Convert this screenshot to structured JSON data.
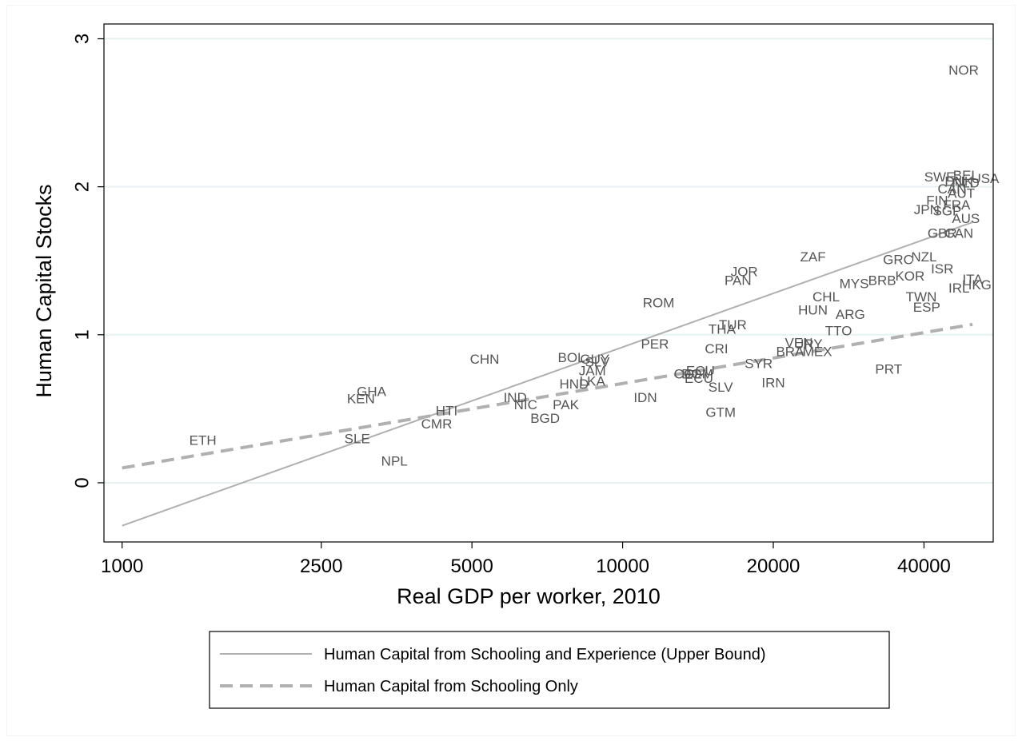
{
  "chart_data": {
    "type": "scatter",
    "title": "",
    "xlabel": "Real GDP per worker, 2010",
    "ylabel": "Human Capital Stocks",
    "x_scale": "log",
    "xlim": [
      920,
      55000
    ],
    "ylim": [
      -0.4,
      3.1
    ],
    "x_ticks": [
      1000,
      2500,
      5000,
      10000,
      20000,
      40000
    ],
    "x_tick_labels": [
      "1000",
      "2500",
      "5000",
      "10000",
      "20000",
      "40000"
    ],
    "y_ticks": [
      0,
      1,
      2,
      3
    ],
    "y_tick_labels": [
      "0",
      "1",
      "2",
      "3"
    ],
    "grid": "horizontal",
    "legend_position": "bottom",
    "colors": {
      "points": "#555555",
      "upper_line": "#b0b0b0",
      "schooling_line": "#b0b0b0",
      "grid": "#e6f1f1",
      "axis": "#000000"
    },
    "series": [
      {
        "name": "Human Capital from Schooling and Experience (Upper Bound)",
        "style": "solid",
        "x": [
          1000,
          50000
        ],
        "y": [
          -0.29,
          1.76
        ]
      },
      {
        "name": "Human Capital from Schooling Only",
        "style": "dashed",
        "x": [
          1000,
          50000
        ],
        "y": [
          0.1,
          1.07
        ]
      }
    ],
    "points": [
      {
        "label": "NOR",
        "x": 48000,
        "y": 2.78
      },
      {
        "label": "SWE",
        "x": 43000,
        "y": 2.06
      },
      {
        "label": "BEL",
        "x": 48500,
        "y": 2.07
      },
      {
        "label": "USA",
        "x": 53000,
        "y": 2.05
      },
      {
        "label": "DNK",
        "x": 47000,
        "y": 2.03
      },
      {
        "label": "NLD",
        "x": 48500,
        "y": 2.02
      },
      {
        "label": "CAN",
        "x": 45500,
        "y": 1.98
      },
      {
        "label": "AUT",
        "x": 47500,
        "y": 1.95
      },
      {
        "label": "FIN",
        "x": 42500,
        "y": 1.9
      },
      {
        "label": "FRA",
        "x": 46500,
        "y": 1.87
      },
      {
        "label": "JPN",
        "x": 40500,
        "y": 1.84
      },
      {
        "label": "SGP",
        "x": 44500,
        "y": 1.83
      },
      {
        "label": "AUS",
        "x": 48500,
        "y": 1.78
      },
      {
        "label": "GBR",
        "x": 43500,
        "y": 1.68
      },
      {
        "label": "CAN",
        "x": 47000,
        "y": 1.68
      },
      {
        "label": "ZAF",
        "x": 24000,
        "y": 1.52
      },
      {
        "label": "GRC",
        "x": 35500,
        "y": 1.5
      },
      {
        "label": "NZL",
        "x": 40000,
        "y": 1.52
      },
      {
        "label": "JOR",
        "x": 17500,
        "y": 1.42
      },
      {
        "label": "ISR",
        "x": 43500,
        "y": 1.44
      },
      {
        "label": "PAN",
        "x": 17000,
        "y": 1.36
      },
      {
        "label": "KOR",
        "x": 37500,
        "y": 1.39
      },
      {
        "label": "BRB",
        "x": 33000,
        "y": 1.36
      },
      {
        "label": "MYS",
        "x": 29000,
        "y": 1.34
      },
      {
        "label": "ITA",
        "x": 50000,
        "y": 1.37
      },
      {
        "label": "HKG",
        "x": 51000,
        "y": 1.33
      },
      {
        "label": "IRL",
        "x": 47000,
        "y": 1.31
      },
      {
        "label": "TWN",
        "x": 39500,
        "y": 1.25
      },
      {
        "label": "CHL",
        "x": 25500,
        "y": 1.25
      },
      {
        "label": "ROM",
        "x": 11800,
        "y": 1.21
      },
      {
        "label": "ESP",
        "x": 40500,
        "y": 1.18
      },
      {
        "label": "HUN",
        "x": 24000,
        "y": 1.16
      },
      {
        "label": "ARG",
        "x": 28500,
        "y": 1.13
      },
      {
        "label": "TUR",
        "x": 16600,
        "y": 1.06
      },
      {
        "label": "THA",
        "x": 15800,
        "y": 1.03
      },
      {
        "label": "TTO",
        "x": 27000,
        "y": 1.02
      },
      {
        "label": "PER",
        "x": 11600,
        "y": 0.93
      },
      {
        "label": "VEN",
        "x": 22500,
        "y": 0.94
      },
      {
        "label": "URY",
        "x": 23500,
        "y": 0.93
      },
      {
        "label": "CRI",
        "x": 15400,
        "y": 0.9
      },
      {
        "label": "BRA",
        "x": 21600,
        "y": 0.88
      },
      {
        "label": "MEX",
        "x": 24500,
        "y": 0.88
      },
      {
        "label": "BOL",
        "x": 7900,
        "y": 0.84
      },
      {
        "label": "CHN",
        "x": 5300,
        "y": 0.83
      },
      {
        "label": "GUY",
        "x": 8800,
        "y": 0.83
      },
      {
        "label": "SLV",
        "x": 8900,
        "y": 0.81
      },
      {
        "label": "SYR",
        "x": 18700,
        "y": 0.8
      },
      {
        "label": "JAM",
        "x": 8700,
        "y": 0.75
      },
      {
        "label": "PRT",
        "x": 34000,
        "y": 0.76
      },
      {
        "label": "ECU",
        "x": 14300,
        "y": 0.75
      },
      {
        "label": "COL",
        "x": 13500,
        "y": 0.73
      },
      {
        "label": "DOM",
        "x": 14100,
        "y": 0.73
      },
      {
        "label": "ECU",
        "x": 14200,
        "y": 0.7
      },
      {
        "label": "LKA",
        "x": 8700,
        "y": 0.68
      },
      {
        "label": "IRN",
        "x": 20000,
        "y": 0.67
      },
      {
        "label": "HND",
        "x": 8000,
        "y": 0.66
      },
      {
        "label": "SLV",
        "x": 15700,
        "y": 0.64
      },
      {
        "label": "GHA",
        "x": 3150,
        "y": 0.61
      },
      {
        "label": "IDN",
        "x": 11100,
        "y": 0.57
      },
      {
        "label": "KEN",
        "x": 3000,
        "y": 0.56
      },
      {
        "label": "IND",
        "x": 6100,
        "y": 0.57
      },
      {
        "label": "NIC",
        "x": 6400,
        "y": 0.52
      },
      {
        "label": "PAK",
        "x": 7700,
        "y": 0.52
      },
      {
        "label": "HTI",
        "x": 4450,
        "y": 0.48
      },
      {
        "label": "GTM",
        "x": 15700,
        "y": 0.47
      },
      {
        "label": "BGD",
        "x": 7000,
        "y": 0.43
      },
      {
        "label": "CMR",
        "x": 4250,
        "y": 0.39
      },
      {
        "label": "ETH",
        "x": 1450,
        "y": 0.28
      },
      {
        "label": "SLE",
        "x": 2950,
        "y": 0.29
      },
      {
        "label": "NPL",
        "x": 3500,
        "y": 0.14
      }
    ]
  }
}
